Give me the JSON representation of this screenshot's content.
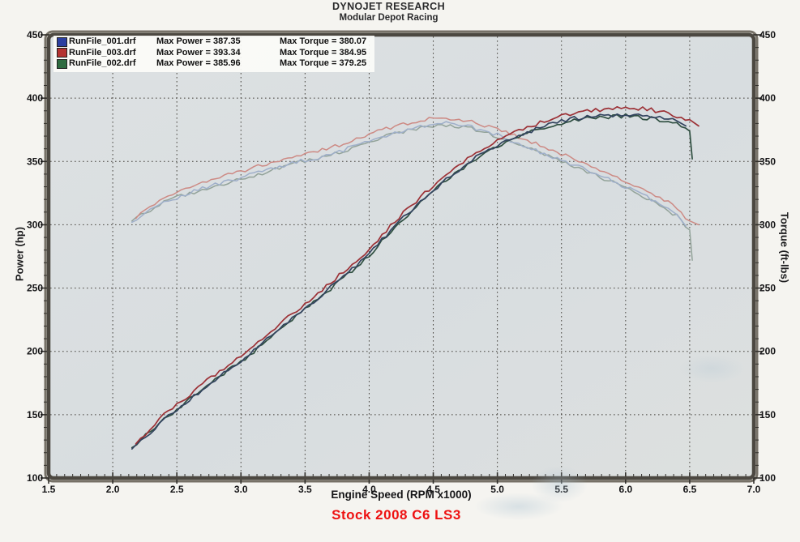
{
  "header": {
    "title": "DYNOJET RESEARCH",
    "subtitle": "Modular Depot Racing"
  },
  "legend": {
    "entries": [
      {
        "file": "RunFile_001.drf",
        "max_power_label": "Max Power = 387.35",
        "max_torque_label": "Max Torque = 380.07",
        "swatch_color": "#2c3fa0"
      },
      {
        "file": "RunFile_003.drf",
        "max_power_label": "Max Power = 393.34",
        "max_torque_label": "Max Torque = 384.95",
        "swatch_color": "#b43231"
      },
      {
        "file": "RunFile_002.drf",
        "max_power_label": "Max Power = 385.96",
        "max_torque_label": "Max Torque = 379.25",
        "swatch_color": "#2e6b40"
      }
    ]
  },
  "axes": {
    "left_label": "Power (hp)",
    "right_label": "Torque (ft-lbs)"
  },
  "footer": {
    "xlabel": "Engine Speed (RPM x1000)",
    "caption": "Stock 2008 C6 LS3",
    "caption_color": "#ee1111"
  },
  "colors": {
    "plot_bg": "#dadfe0",
    "plot_bg_light": "#e2e6e6",
    "frame": "#4c4841",
    "frame_outer": "#767167",
    "grid": "#45423c",
    "tick": "#2f2d29",
    "tick_label": "#141416"
  },
  "chart_data": {
    "type": "line",
    "title": "DYNOJET RESEARCH",
    "subtitle": "Modular Depot Racing",
    "xlabel": "Engine Speed (RPM x1000)",
    "ylabel_left": "Power (hp)",
    "ylabel_right": "Torque (ft-lbs)",
    "xlim": [
      1.5,
      7.0
    ],
    "ylim_left": [
      100,
      450
    ],
    "ylim_right": [
      100,
      450
    ],
    "x_tick_step": 0.5,
    "y_tick_step": 50,
    "x_minor_step": 0.0625,
    "y_minor_step": 10,
    "grid": "dotted-major",
    "legend_position": "top-left",
    "series": [
      {
        "name": "RunFile_001.drf Power",
        "run": "RunFile_001.drf",
        "measure": "power",
        "unit": "hp",
        "axis": "left",
        "max": 387.35,
        "color": "#33445f",
        "points": [
          [
            2.15,
            123
          ],
          [
            2.4,
            146
          ],
          [
            2.6,
            162
          ],
          [
            2.8,
            178
          ],
          [
            3.0,
            193
          ],
          [
            3.2,
            209
          ],
          [
            3.4,
            226
          ],
          [
            3.6,
            242
          ],
          [
            3.8,
            259
          ],
          [
            4.0,
            277
          ],
          [
            4.2,
            299
          ],
          [
            4.4,
            318
          ],
          [
            4.6,
            336
          ],
          [
            4.8,
            351
          ],
          [
            5.0,
            363
          ],
          [
            5.2,
            372
          ],
          [
            5.4,
            379
          ],
          [
            5.6,
            384
          ],
          [
            5.8,
            386
          ],
          [
            6.0,
            387
          ],
          [
            6.2,
            386
          ],
          [
            6.4,
            382
          ],
          [
            6.47,
            378
          ]
        ]
      },
      {
        "name": "RunFile_002.drf Power",
        "run": "RunFile_002.drf",
        "measure": "power",
        "unit": "hp",
        "axis": "left",
        "max": 385.96,
        "color": "#2f4f41",
        "points": [
          [
            2.15,
            124
          ],
          [
            2.4,
            146
          ],
          [
            2.6,
            162
          ],
          [
            2.8,
            178
          ],
          [
            3.0,
            192
          ],
          [
            3.2,
            208
          ],
          [
            3.4,
            225
          ],
          [
            3.6,
            241
          ],
          [
            3.8,
            258
          ],
          [
            4.0,
            276
          ],
          [
            4.2,
            298
          ],
          [
            4.4,
            317
          ],
          [
            4.6,
            335
          ],
          [
            4.8,
            350
          ],
          [
            5.0,
            362
          ],
          [
            5.2,
            371
          ],
          [
            5.4,
            378
          ],
          [
            5.6,
            383
          ],
          [
            5.8,
            385
          ],
          [
            6.0,
            386
          ],
          [
            6.2,
            384
          ],
          [
            6.4,
            380
          ],
          [
            6.5,
            374
          ],
          [
            6.52,
            352
          ]
        ]
      },
      {
        "name": "RunFile_003.drf Power",
        "run": "RunFile_003.drf",
        "measure": "power",
        "unit": "hp",
        "axis": "left",
        "max": 393.34,
        "color": "#9c3136",
        "points": [
          [
            2.18,
            127
          ],
          [
            2.4,
            150
          ],
          [
            2.6,
            166
          ],
          [
            2.8,
            182
          ],
          [
            3.0,
            197
          ],
          [
            3.2,
            213
          ],
          [
            3.4,
            230
          ],
          [
            3.6,
            246
          ],
          [
            3.8,
            263
          ],
          [
            4.0,
            281
          ],
          [
            4.2,
            303
          ],
          [
            4.4,
            322
          ],
          [
            4.6,
            340
          ],
          [
            4.8,
            355
          ],
          [
            5.0,
            367
          ],
          [
            5.2,
            376
          ],
          [
            5.4,
            383
          ],
          [
            5.6,
            388
          ],
          [
            5.8,
            391
          ],
          [
            6.0,
            393
          ],
          [
            6.2,
            391
          ],
          [
            6.4,
            386
          ],
          [
            6.5,
            383
          ],
          [
            6.57,
            378
          ]
        ]
      },
      {
        "name": "RunFile_001.drf Torque",
        "run": "RunFile_001.drf",
        "measure": "torque",
        "unit": "ft-lbs",
        "axis": "right",
        "max": 380.07,
        "color": "#9fafca",
        "points": [
          [
            2.15,
            302
          ],
          [
            2.4,
            318
          ],
          [
            2.6,
            325
          ],
          [
            2.8,
            332
          ],
          [
            3.0,
            337
          ],
          [
            3.2,
            343
          ],
          [
            3.4,
            349
          ],
          [
            3.6,
            353
          ],
          [
            3.8,
            359
          ],
          [
            4.0,
            366
          ],
          [
            4.2,
            373
          ],
          [
            4.4,
            378
          ],
          [
            4.6,
            380
          ],
          [
            4.8,
            377
          ],
          [
            5.0,
            371
          ],
          [
            5.2,
            363
          ],
          [
            5.4,
            355
          ],
          [
            5.6,
            347
          ],
          [
            5.8,
            339
          ],
          [
            6.0,
            330
          ],
          [
            6.2,
            320
          ],
          [
            6.4,
            308
          ],
          [
            6.47,
            299
          ]
        ]
      },
      {
        "name": "RunFile_002.drf Torque",
        "run": "RunFile_002.drf",
        "measure": "torque",
        "unit": "ft-lbs",
        "axis": "right",
        "max": 379.25,
        "color": "#93a39a",
        "points": [
          [
            2.15,
            303
          ],
          [
            2.4,
            318
          ],
          [
            2.6,
            325
          ],
          [
            2.8,
            331
          ],
          [
            3.0,
            336
          ],
          [
            3.2,
            342
          ],
          [
            3.4,
            348
          ],
          [
            3.6,
            352
          ],
          [
            3.8,
            358
          ],
          [
            4.0,
            365
          ],
          [
            4.2,
            372
          ],
          [
            4.4,
            377
          ],
          [
            4.6,
            379
          ],
          [
            4.8,
            376
          ],
          [
            5.0,
            370
          ],
          [
            5.2,
            362
          ],
          [
            5.4,
            354
          ],
          [
            5.6,
            346
          ],
          [
            5.8,
            338
          ],
          [
            6.0,
            329
          ],
          [
            6.2,
            319
          ],
          [
            6.4,
            307
          ],
          [
            6.5,
            296
          ],
          [
            6.52,
            272
          ]
        ]
      },
      {
        "name": "RunFile_003.drf Torque",
        "run": "RunFile_003.drf",
        "measure": "torque",
        "unit": "ft-lbs",
        "axis": "right",
        "max": 384.95,
        "color": "#cd8a84",
        "points": [
          [
            2.18,
            305
          ],
          [
            2.4,
            322
          ],
          [
            2.6,
            330
          ],
          [
            2.8,
            337
          ],
          [
            3.0,
            342
          ],
          [
            3.2,
            348
          ],
          [
            3.4,
            354
          ],
          [
            3.6,
            358
          ],
          [
            3.8,
            364
          ],
          [
            4.0,
            371
          ],
          [
            4.2,
            378
          ],
          [
            4.4,
            383
          ],
          [
            4.6,
            385
          ],
          [
            4.8,
            381
          ],
          [
            5.0,
            375
          ],
          [
            5.2,
            368
          ],
          [
            5.4,
            360
          ],
          [
            5.6,
            352
          ],
          [
            5.8,
            344
          ],
          [
            6.0,
            335
          ],
          [
            6.2,
            326
          ],
          [
            6.4,
            313
          ],
          [
            6.5,
            303
          ],
          [
            6.57,
            300
          ]
        ]
      }
    ],
    "x_ticks": [
      1.5,
      2.0,
      2.5,
      3.0,
      3.5,
      4.0,
      4.5,
      5.0,
      5.5,
      6.0,
      6.5,
      7.0
    ],
    "y_ticks": [
      100,
      150,
      200,
      250,
      300,
      350,
      400,
      450
    ]
  }
}
